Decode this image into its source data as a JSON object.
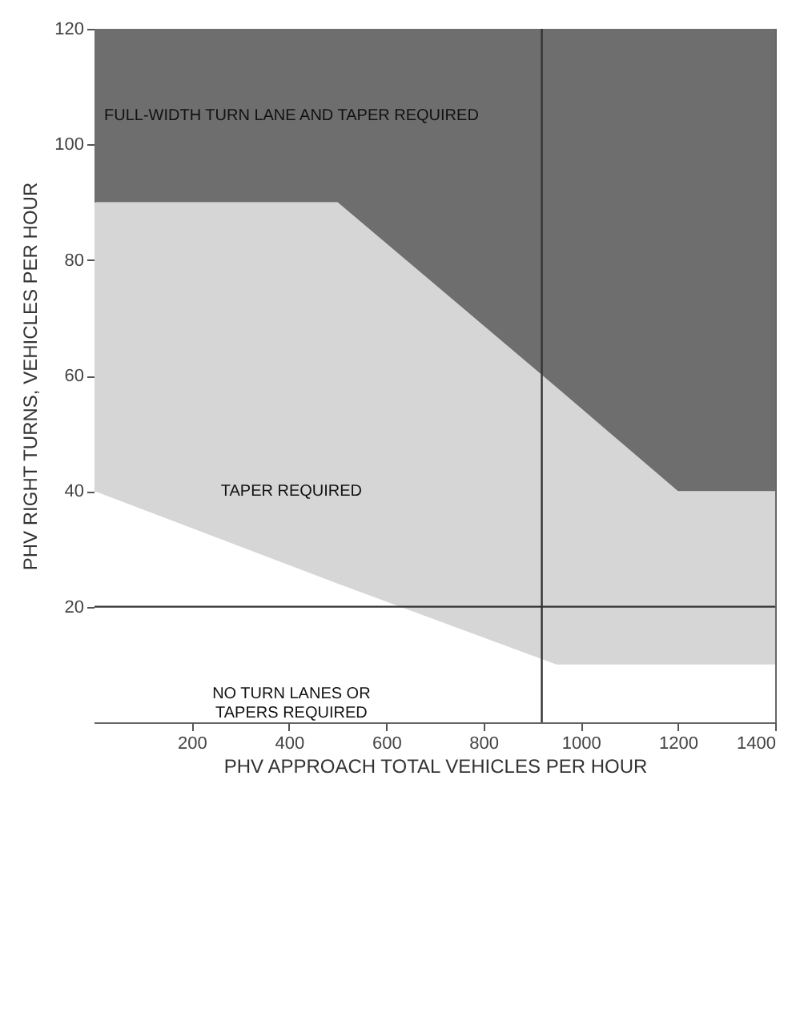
{
  "chart_data": {
    "type": "area",
    "stacked": true,
    "xlabel": "PHV APPROACH TOTAL VEHICLES PER HOUR",
    "ylabel": "PHV RIGHT TURNS, VEHICLES PER HOUR",
    "x": [
      0,
      500,
      950,
      1200,
      1400
    ],
    "series": [
      {
        "color": "#ffffff",
        "values": [
          40,
          24,
          10,
          10,
          10
        ]
      },
      {
        "color": "#d6d6d6",
        "values": [
          50,
          66,
          48,
          30,
          30
        ]
      },
      {
        "color": "#6e6e6e",
        "values": [
          30,
          30,
          62,
          80,
          80
        ]
      }
    ],
    "xlim": [
      0,
      1400
    ],
    "ylim": [
      0,
      120
    ],
    "xticks": [
      200,
      400,
      600,
      800,
      1000,
      1200,
      1400
    ],
    "yticks": [
      20,
      40,
      60,
      80,
      100,
      120
    ],
    "ref_lines": [
      {
        "axis": "x",
        "value": 920
      },
      {
        "axis": "y",
        "value": 20
      }
    ],
    "annotations": [
      "FULL-WIDTH TURN LANE AND TAPER REQUIRED",
      "TAPER REQUIRED",
      "NO TURN LANES OR\nTAPERS REQUIRED"
    ]
  }
}
